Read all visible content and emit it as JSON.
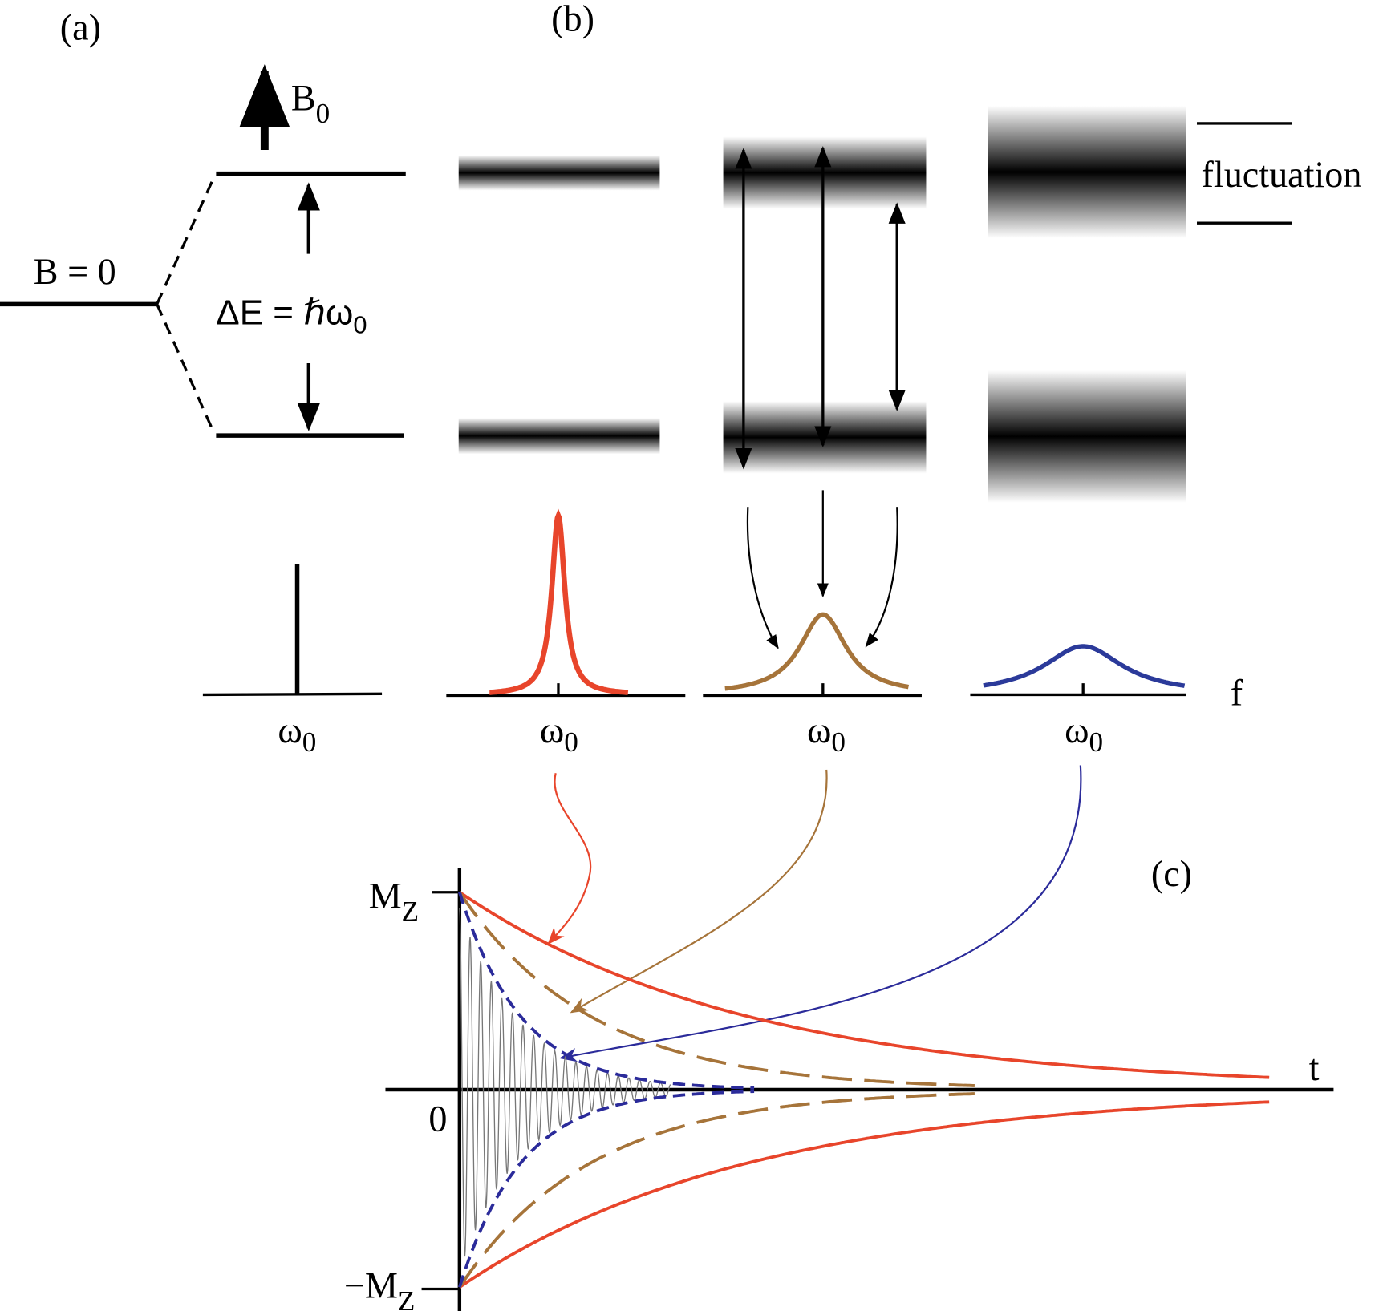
{
  "panels": {
    "a": "(a)",
    "b": "(b)",
    "c": "(c)"
  },
  "field": {
    "text": "B",
    "sub": "0"
  },
  "zero_field": "B = 0",
  "splitting": {
    "text": "ΔE = ℏω",
    "sub": "0"
  },
  "fluctuation": "fluctuation",
  "spectra": {
    "peak_labels": [
      {
        "text": "ω",
        "sub": "0"
      },
      {
        "text": "ω",
        "sub": "0"
      },
      {
        "text": "ω",
        "sub": "0"
      },
      {
        "text": "ω",
        "sub": "0"
      }
    ],
    "axis_label": "f"
  },
  "decay": {
    "y_top": {
      "text": "M",
      "sub": "Z"
    },
    "y_zero": "0",
    "y_bottom": {
      "text": "−M",
      "sub": "Z"
    },
    "x_label": "t"
  }
}
